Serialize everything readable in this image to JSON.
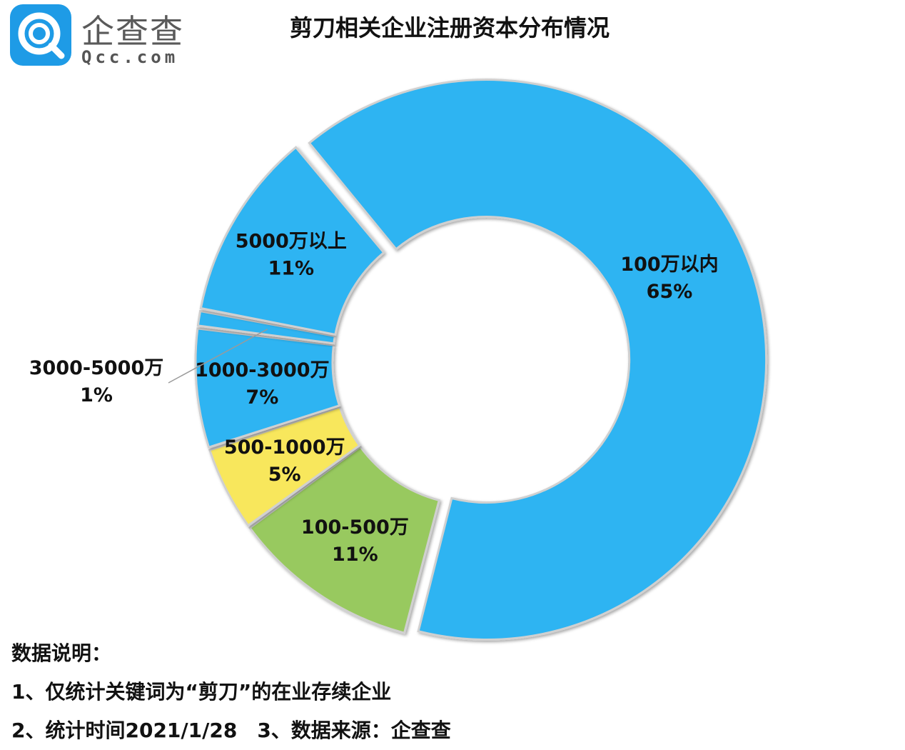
{
  "header": {
    "logo_cn": "企查查",
    "logo_en": "Qcc.com",
    "title": "剪刀相关企业注册资本分布情况"
  },
  "chart_data": {
    "type": "pie",
    "variant": "donut",
    "title": "剪刀相关企业注册资本分布情况",
    "categories": [
      "100万以内",
      "100-500万",
      "500-1000万",
      "1000-3000万",
      "3000-5000万",
      "5000万以上"
    ],
    "values": [
      65,
      11,
      5,
      7,
      1,
      11
    ],
    "labels": [
      "65%",
      "11%",
      "5%",
      "7%",
      "1%",
      "11%"
    ],
    "colors": [
      "#2db4f2",
      "#98c95e",
      "#f8e75c",
      "#2db4f2",
      "#2db4f2",
      "#2db4f2"
    ],
    "exploded": [
      "100万以内"
    ]
  },
  "notes": {
    "heading": "数据说明：",
    "line1": "1、仅统计关键词为“剪刀”的在业存续企业",
    "line2": "2、统计时间2021/1/28　3、数据来源：企查查"
  }
}
